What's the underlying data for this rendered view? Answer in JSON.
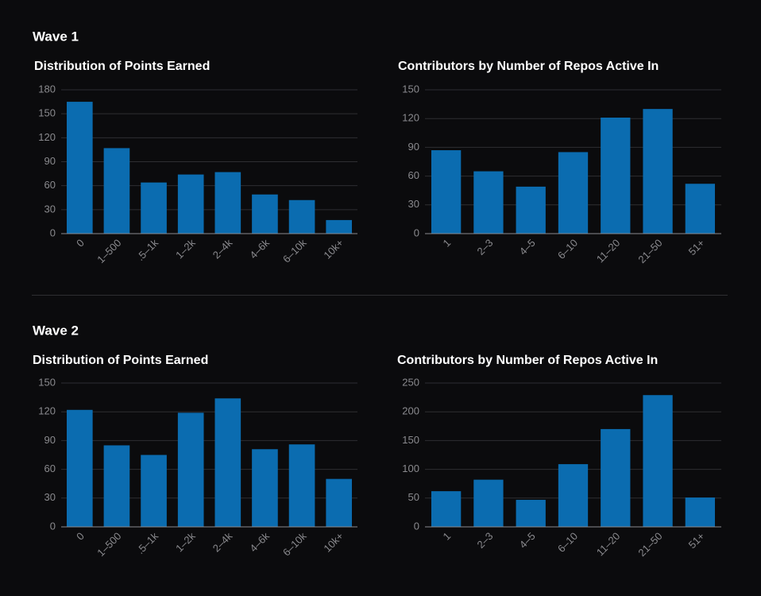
{
  "sections": [
    {
      "title": "Wave 1"
    },
    {
      "title": "Wave 2"
    }
  ],
  "chart_data": [
    {
      "type": "bar",
      "title": "Distribution of Points Earned",
      "categories": [
        "0",
        "1–500",
        ".5–1k",
        "1–2k",
        "2–4k",
        "4–6k",
        "6–10k",
        "10k+"
      ],
      "values": [
        165,
        107,
        64,
        74,
        77,
        49,
        42,
        17
      ],
      "color": "#0b6cb0",
      "ylim": [
        0,
        180
      ],
      "yticks": [
        0,
        30,
        60,
        90,
        120,
        150,
        180
      ],
      "grid": true
    },
    {
      "type": "bar",
      "title": "Contributors by Number of Repos Active In",
      "categories": [
        "1",
        "2–3",
        "4–5",
        "6–10",
        "11–20",
        "21–50",
        "51+"
      ],
      "values": [
        87,
        65,
        49,
        85,
        121,
        130,
        52
      ],
      "color": "#0b6cb0",
      "ylim": [
        0,
        150
      ],
      "yticks": [
        0,
        30,
        60,
        90,
        120,
        150
      ],
      "grid": true
    },
    {
      "type": "bar",
      "title": "Distribution of Points Earned",
      "categories": [
        "0",
        "1–500",
        ".5–1k",
        "1–2k",
        "2–4k",
        "4–6k",
        "6–10k",
        "10k+"
      ],
      "values": [
        122,
        85,
        75,
        119,
        134,
        81,
        86,
        50
      ],
      "color": "#0b6cb0",
      "ylim": [
        0,
        150
      ],
      "yticks": [
        0,
        30,
        60,
        90,
        120,
        150
      ],
      "grid": true
    },
    {
      "type": "bar",
      "title": "Contributors by Number of Repos Active In",
      "categories": [
        "1",
        "2–3",
        "4–5",
        "6–10",
        "11–20",
        "21–50",
        "51+"
      ],
      "values": [
        62,
        82,
        47,
        109,
        170,
        229,
        51
      ],
      "color": "#0b6cb0",
      "ylim": [
        0,
        250
      ],
      "yticks": [
        0,
        50,
        100,
        150,
        200,
        250
      ],
      "grid": true
    }
  ]
}
